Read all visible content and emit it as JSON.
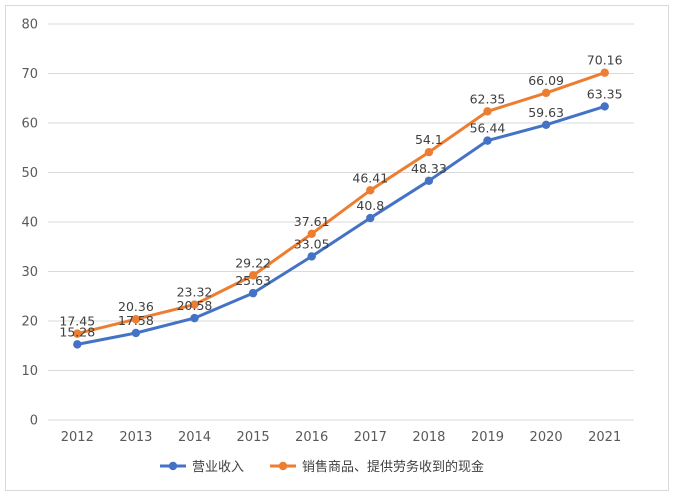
{
  "chart_data": {
    "type": "line",
    "title": "",
    "xlabel": "",
    "ylabel": "",
    "ylim": [
      0,
      80
    ],
    "yticks": [
      0,
      10,
      20,
      30,
      40,
      50,
      60,
      70,
      80
    ],
    "grid": true,
    "legend_position": "bottom",
    "categories": [
      "2012",
      "2013",
      "2014",
      "2015",
      "2016",
      "2017",
      "2018",
      "2019",
      "2020",
      "2021"
    ],
    "series": [
      {
        "name": "营业收入",
        "color": "#4472c4",
        "values": [
          15.28,
          17.58,
          20.58,
          25.63,
          33.05,
          40.8,
          48.33,
          56.44,
          59.63,
          63.35
        ],
        "labels": [
          "15.28",
          "17.58",
          "20.58",
          "25.63",
          "33.05",
          "40.8",
          "48.33",
          "56.44",
          "59.63",
          "63.35"
        ]
      },
      {
        "name": "销售商品、提供劳务收到的现金",
        "color": "#ed7d31",
        "values": [
          17.45,
          20.36,
          23.32,
          29.22,
          37.61,
          46.41,
          54.1,
          62.35,
          66.09,
          70.16
        ],
        "labels": [
          "17.45",
          "20.36",
          "23.32",
          "29.22",
          "37.61",
          "46.41",
          "54.1",
          "62.35",
          "66.09",
          "70.16"
        ]
      }
    ]
  }
}
